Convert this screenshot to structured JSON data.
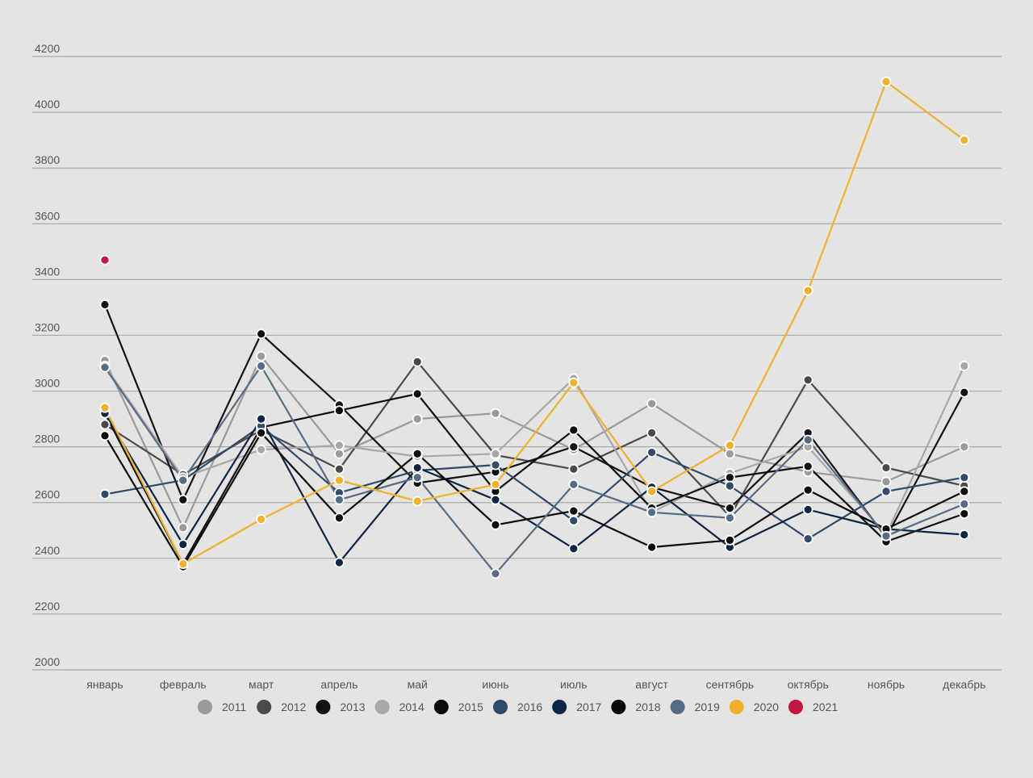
{
  "chart_data": {
    "type": "line",
    "title": "",
    "xlabel": "",
    "ylabel": "",
    "ylim": [
      2000,
      4200
    ],
    "yticks": [
      2000,
      2200,
      2400,
      2600,
      2800,
      3000,
      3200,
      3400,
      3600,
      3800,
      4000,
      4200
    ],
    "grid": true,
    "legend_position": "bottom",
    "categories": [
      "январь",
      "февраль",
      "март",
      "апрель",
      "май",
      "июнь",
      "июль",
      "август",
      "сентябрь",
      "октябрь",
      "ноябрь",
      "декабрь"
    ],
    "series": [
      {
        "name": "2011",
        "color": "#9a9a9a",
        "values": [
          3110,
          2510,
          3125,
          2775,
          2900,
          2920,
          2790,
          2955,
          2775,
          2710,
          2675,
          2800
        ]
      },
      {
        "name": "2012",
        "color": "#4a4a4a",
        "values": [
          2880,
          2700,
          2860,
          2720,
          3105,
          2770,
          2720,
          2850,
          2550,
          3040,
          2725,
          2660
        ]
      },
      {
        "name": "2013",
        "color": "#111111",
        "values": [
          3310,
          2610,
          3205,
          2950,
          2670,
          2710,
          2800,
          2655,
          2580,
          2850,
          2475,
          2995
        ]
      },
      {
        "name": "2014",
        "color": "#a8a8a8",
        "values": [
          3090,
          2690,
          2790,
          2805,
          2765,
          2775,
          3045,
          2565,
          2705,
          2800,
          2485,
          3090
        ]
      },
      {
        "name": "2015",
        "color": "#0c0c0c",
        "values": [
          2920,
          2380,
          2870,
          2930,
          2990,
          2640,
          2860,
          2580,
          2690,
          2730,
          2460,
          2560
        ]
      },
      {
        "name": "2016",
        "color": "#2f4a6a",
        "values": [
          2630,
          2680,
          2875,
          2635,
          2715,
          2735,
          2535,
          2780,
          2660,
          2470,
          2640,
          2690
        ]
      },
      {
        "name": "2017",
        "color": "#0f2545",
        "values": [
          2920,
          2450,
          2900,
          2385,
          2725,
          2610,
          2435,
          2655,
          2440,
          2575,
          2505,
          2485
        ]
      },
      {
        "name": "2018",
        "color": "#0a0a0a",
        "values": [
          2840,
          2370,
          2850,
          2545,
          2775,
          2520,
          2570,
          2440,
          2465,
          2645,
          2505,
          2640
        ]
      },
      {
        "name": "2019",
        "color": "#566c86",
        "values": [
          3085,
          2680,
          3090,
          2610,
          2690,
          2345,
          2665,
          2565,
          2545,
          2825,
          2480,
          2595
        ]
      },
      {
        "name": "2020",
        "color": "#f0b22e",
        "values": [
          2940,
          2380,
          2540,
          2680,
          2605,
          2665,
          3030,
          2640,
          2805,
          3360,
          4110,
          3900
        ]
      },
      {
        "name": "2021",
        "color": "#c4163f",
        "values": [
          3470,
          null,
          null,
          null,
          null,
          null,
          null,
          null,
          null,
          null,
          null,
          null
        ]
      }
    ]
  }
}
